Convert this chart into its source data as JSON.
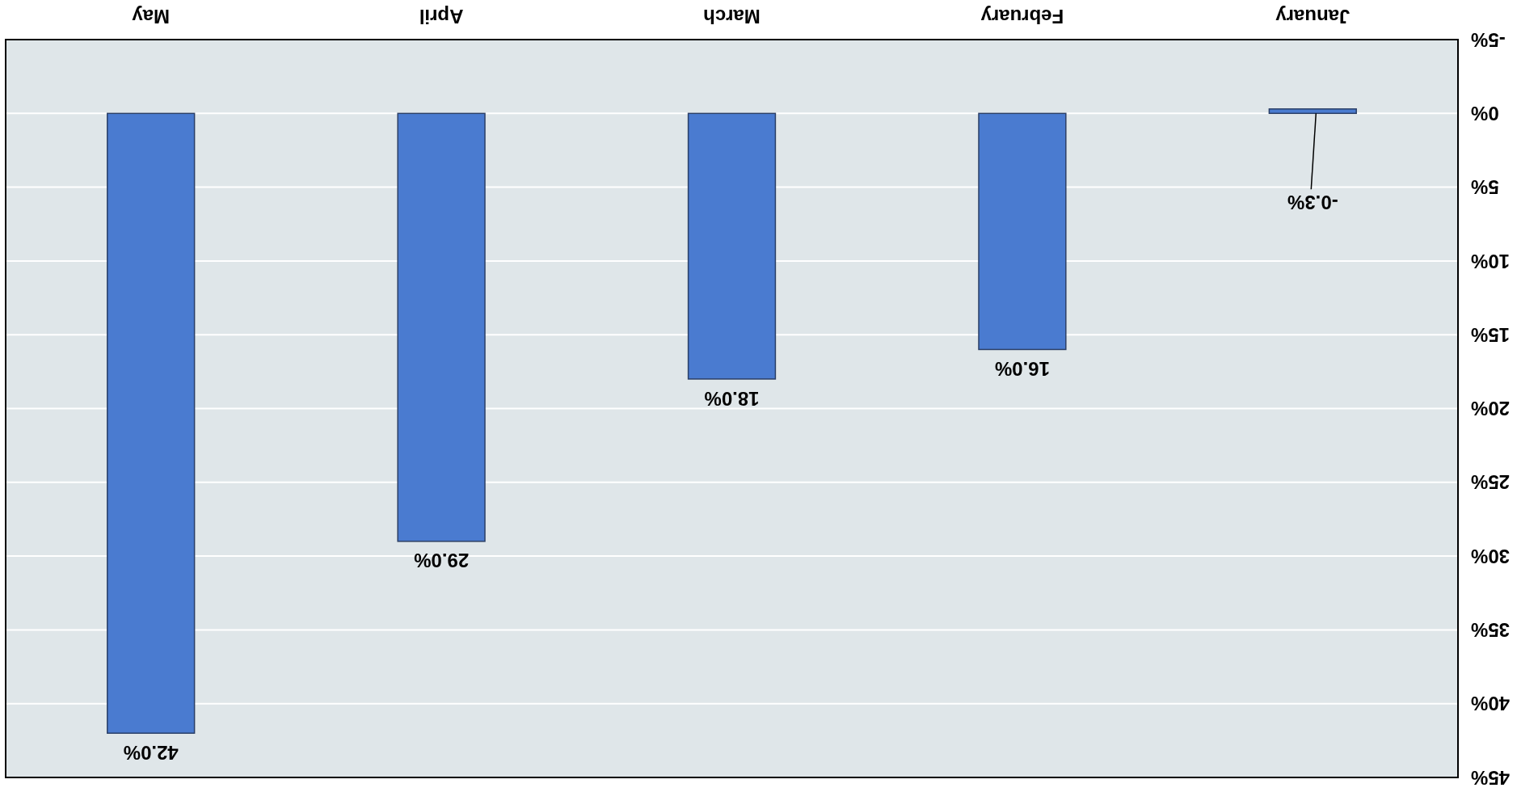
{
  "chart_data": {
    "type": "bar",
    "categories": [
      "May",
      "April",
      "March",
      "February",
      "January"
    ],
    "values": [
      42,
      29,
      18,
      16,
      -0.3
    ],
    "color": "#4a7bd0",
    "value_labels": [
      "42.0%",
      "29.0%",
      "18.0%",
      "16.0%",
      "-0.3%"
    ],
    "ylim": [
      45,
      -5
    ],
    "yticks": [
      {
        "value": -5,
        "label": "-5%"
      },
      {
        "value": 0,
        "label": "0%"
      },
      {
        "value": 5,
        "label": "5%"
      },
      {
        "value": 10,
        "label": "10%"
      },
      {
        "value": 15,
        "label": "15%"
      },
      {
        "value": 20,
        "label": "20%"
      },
      {
        "value": 25,
        "label": "25%"
      },
      {
        "value": 30,
        "label": "30%"
      },
      {
        "value": 35,
        "label": "35%"
      },
      {
        "value": 40,
        "label": "40%"
      },
      {
        "value": 45,
        "label": "45%"
      }
    ],
    "grid": "y"
  }
}
